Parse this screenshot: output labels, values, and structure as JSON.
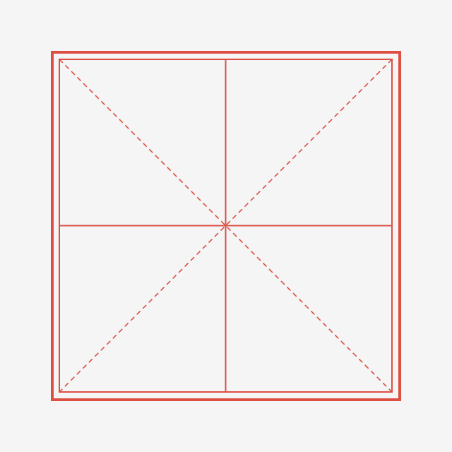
{
  "grid": {
    "type": "mizige",
    "colors": {
      "background": "#f5f5f5",
      "line": "#dd4f43"
    },
    "elements": [
      "outer-border",
      "inner-border",
      "vertical-center-line",
      "horizontal-center-line",
      "diagonal-line-tl-br",
      "diagonal-line-tr-bl"
    ]
  }
}
